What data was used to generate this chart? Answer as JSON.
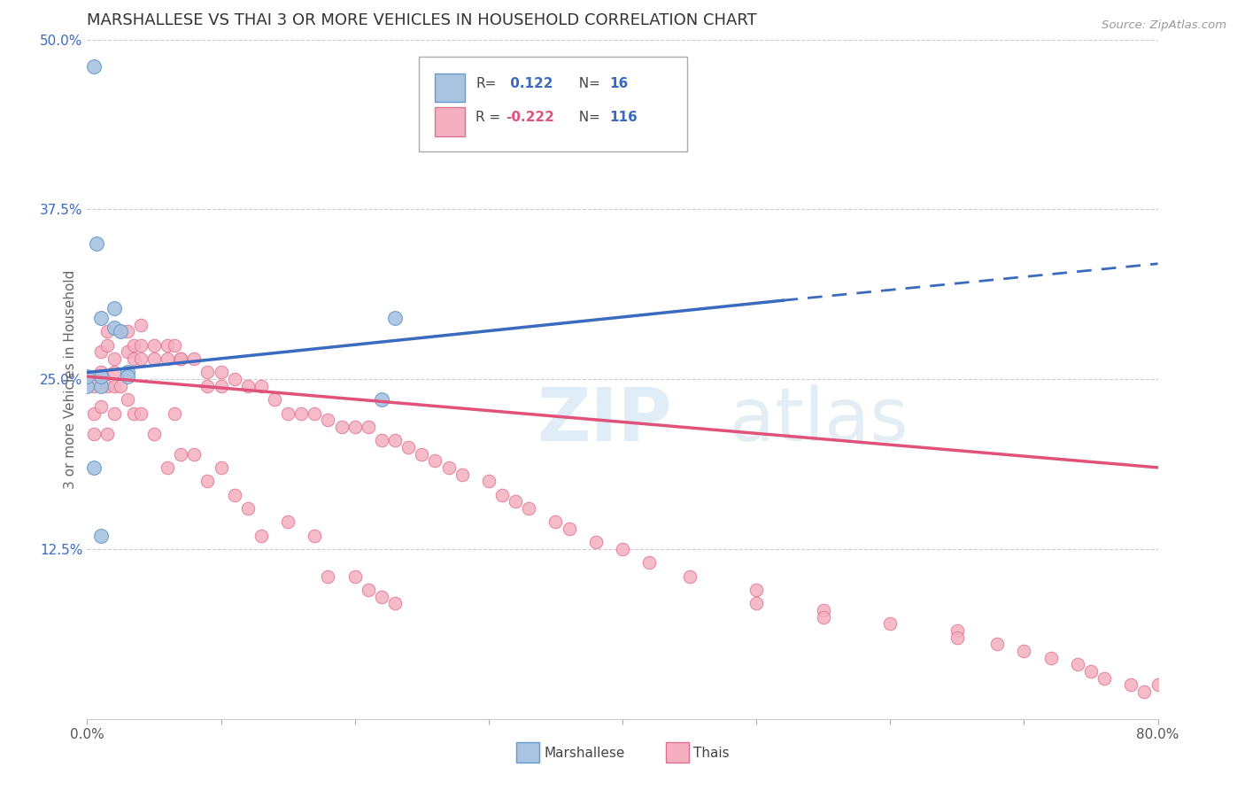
{
  "title": "MARSHALLESE VS THAI 3 OR MORE VEHICLES IN HOUSEHOLD CORRELATION CHART",
  "source_text": "Source: ZipAtlas.com",
  "ylabel": "3 or more Vehicles in Household",
  "watermark_zip": "ZIP",
  "watermark_atlas": "atlas",
  "xlim": [
    0.0,
    0.8
  ],
  "ylim": [
    0.0,
    0.5
  ],
  "yticks": [
    0.0,
    0.125,
    0.25,
    0.375,
    0.5
  ],
  "ytick_labels": [
    "",
    "12.5%",
    "25.0%",
    "37.5%",
    "50.0%"
  ],
  "xticks": [
    0.0,
    0.1,
    0.2,
    0.3,
    0.4,
    0.5,
    0.6,
    0.7,
    0.8
  ],
  "xtick_labels": [
    "0.0%",
    "",
    "",
    "",
    "",
    "",
    "",
    "",
    "80.0%"
  ],
  "marshallese_color": "#a8c4e0",
  "marshallese_edge": "#6699cc",
  "thai_color": "#f4b0c0",
  "thai_edge": "#e07090",
  "marshallese_R": 0.122,
  "marshallese_N": 16,
  "thai_R": -0.222,
  "thai_N": 116,
  "marshallese_line_color": "#3a6bbf",
  "thai_line_color": "#e0527a",
  "legend_color": "#3a6bbf",
  "marshallese_x": [
    0.005,
    0.007,
    0.01,
    0.02,
    0.02,
    0.025,
    0.03,
    0.03,
    0.22,
    0.23,
    0.005,
    0.0,
    0.0,
    0.01,
    0.01,
    0.01
  ],
  "marshallese_y": [
    0.48,
    0.35,
    0.295,
    0.302,
    0.288,
    0.285,
    0.255,
    0.252,
    0.235,
    0.295,
    0.185,
    0.245,
    0.252,
    0.135,
    0.245,
    0.252
  ],
  "thai_x": [
    0.005,
    0.005,
    0.005,
    0.01,
    0.01,
    0.01,
    0.015,
    0.015,
    0.015,
    0.015,
    0.02,
    0.02,
    0.02,
    0.02,
    0.025,
    0.025,
    0.03,
    0.03,
    0.03,
    0.035,
    0.035,
    0.035,
    0.04,
    0.04,
    0.04,
    0.04,
    0.05,
    0.05,
    0.05,
    0.06,
    0.06,
    0.06,
    0.065,
    0.065,
    0.07,
    0.07,
    0.07,
    0.08,
    0.08,
    0.09,
    0.09,
    0.09,
    0.1,
    0.1,
    0.1,
    0.11,
    0.11,
    0.12,
    0.12,
    0.13,
    0.13,
    0.14,
    0.15,
    0.15,
    0.16,
    0.17,
    0.17,
    0.18,
    0.18,
    0.19,
    0.2,
    0.2,
    0.21,
    0.21,
    0.22,
    0.22,
    0.23,
    0.23,
    0.24,
    0.25,
    0.26,
    0.27,
    0.28,
    0.3,
    0.31,
    0.32,
    0.33,
    0.35,
    0.36,
    0.38,
    0.4,
    0.42,
    0.45,
    0.5,
    0.5,
    0.55,
    0.55,
    0.6,
    0.65,
    0.65,
    0.68,
    0.7,
    0.72,
    0.74,
    0.75,
    0.76,
    0.78,
    0.79,
    0.8,
    0.82,
    0.82,
    0.82,
    0.82,
    0.82,
    0.82,
    0.82,
    0.82,
    0.82,
    0.82,
    0.82,
    0.82,
    0.82,
    0.82,
    0.82,
    0.82,
    0.82
  ],
  "thai_y": [
    0.245,
    0.225,
    0.21,
    0.27,
    0.255,
    0.23,
    0.285,
    0.275,
    0.245,
    0.21,
    0.265,
    0.255,
    0.245,
    0.225,
    0.285,
    0.245,
    0.285,
    0.27,
    0.235,
    0.275,
    0.265,
    0.225,
    0.29,
    0.275,
    0.265,
    0.225,
    0.275,
    0.265,
    0.21,
    0.275,
    0.265,
    0.185,
    0.275,
    0.225,
    0.265,
    0.265,
    0.195,
    0.265,
    0.195,
    0.255,
    0.245,
    0.175,
    0.255,
    0.245,
    0.185,
    0.25,
    0.165,
    0.245,
    0.155,
    0.245,
    0.135,
    0.235,
    0.225,
    0.145,
    0.225,
    0.225,
    0.135,
    0.22,
    0.105,
    0.215,
    0.215,
    0.105,
    0.215,
    0.095,
    0.205,
    0.09,
    0.205,
    0.085,
    0.2,
    0.195,
    0.19,
    0.185,
    0.18,
    0.175,
    0.165,
    0.16,
    0.155,
    0.145,
    0.14,
    0.13,
    0.125,
    0.115,
    0.105,
    0.095,
    0.085,
    0.08,
    0.075,
    0.07,
    0.065,
    0.06,
    0.055,
    0.05,
    0.045,
    0.04,
    0.035,
    0.03,
    0.025,
    0.02,
    0.025,
    0.025,
    0.025,
    0.025,
    0.025,
    0.025,
    0.025,
    0.025,
    0.025,
    0.025,
    0.025,
    0.025,
    0.025,
    0.025,
    0.025,
    0.025,
    0.025,
    0.025
  ]
}
